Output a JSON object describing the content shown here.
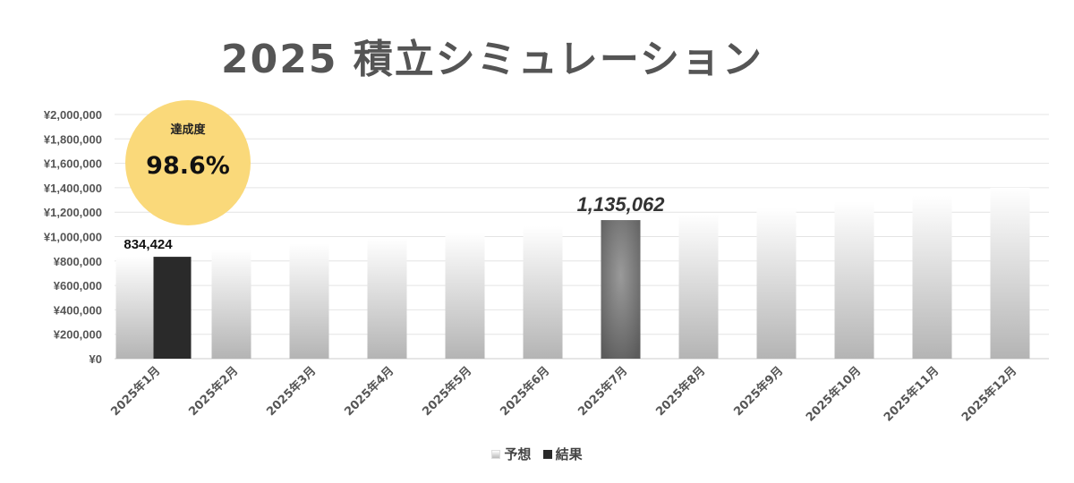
{
  "title": "2025 積立シミュレーション",
  "achievement": {
    "label": "達成度",
    "value": "98.6%"
  },
  "chart_data": {
    "type": "bar",
    "categories": [
      "2025年1月",
      "2025年2月",
      "2025年3月",
      "2025年4月",
      "2025年5月",
      "2025年6月",
      "2025年7月",
      "2025年8月",
      "2025年9月",
      "2025年10月",
      "2025年11月",
      "2025年12月"
    ],
    "series": [
      {
        "name": "予想",
        "values": [
          840000,
          890000,
          940000,
          985000,
          1030000,
          1085000,
          1135062,
          1185000,
          1235000,
          1285000,
          1335000,
          1400000
        ]
      },
      {
        "name": "結果",
        "values": [
          834424,
          null,
          null,
          null,
          null,
          null,
          null,
          null,
          null,
          null,
          null,
          null
        ]
      }
    ],
    "data_labels": [
      {
        "series": "結果",
        "index": 0,
        "text": "834,424"
      },
      {
        "series": "予想",
        "index": 6,
        "text": "1,135,062"
      }
    ],
    "highlight_index": 6,
    "ylim": [
      0,
      2000000
    ],
    "yticks": [
      0,
      200000,
      400000,
      600000,
      800000,
      1000000,
      1200000,
      1400000,
      1600000,
      1800000,
      2000000
    ],
    "ytick_labels": [
      "¥0",
      "¥200,000",
      "¥400,000",
      "¥600,000",
      "¥800,000",
      "¥1,000,000",
      "¥1,200,000",
      "¥1,400,000",
      "¥1,600,000",
      "¥1,800,000",
      "¥2,000,000"
    ],
    "grid": true,
    "legend_position": "bottom",
    "colors": {
      "forecast_top": "#ffffff",
      "forecast_bottom": "#b4b4b4",
      "result": "#2a2a2a",
      "highlight_top": "#5c5c5c",
      "highlight_mid": "#8e8e8e",
      "badge": "#fad97a",
      "title": "#555555"
    }
  }
}
